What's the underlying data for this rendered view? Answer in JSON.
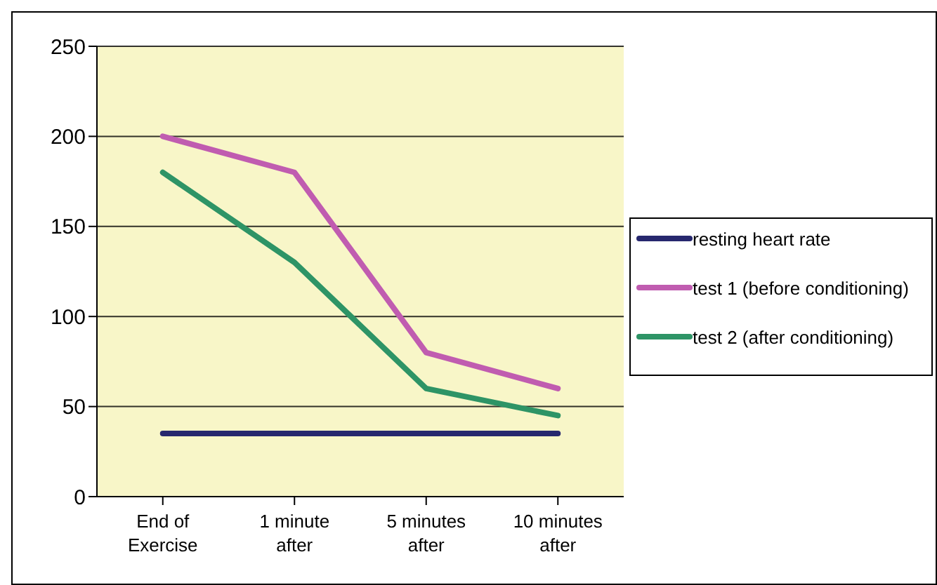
{
  "chart_data": {
    "type": "line",
    "categories": [
      "End of Exercise",
      "1 minute after",
      "5 minutes after",
      "10 minutes after"
    ],
    "series": [
      {
        "name": "resting heart rate",
        "color": "#27286e",
        "values": [
          35,
          35,
          35,
          35
        ]
      },
      {
        "name": "test 1 (before conditioning)",
        "color": "#c05cb0",
        "values": [
          200,
          180,
          80,
          60
        ]
      },
      {
        "name": "test 2 (after conditioning)",
        "color": "#2e9466",
        "values": [
          180,
          130,
          60,
          45
        ]
      }
    ],
    "ylim": [
      0,
      250
    ],
    "yticks": [
      0,
      50,
      100,
      150,
      200,
      250
    ],
    "grid": "y",
    "legend": "right",
    "marker": "none",
    "line_style": "solid"
  }
}
